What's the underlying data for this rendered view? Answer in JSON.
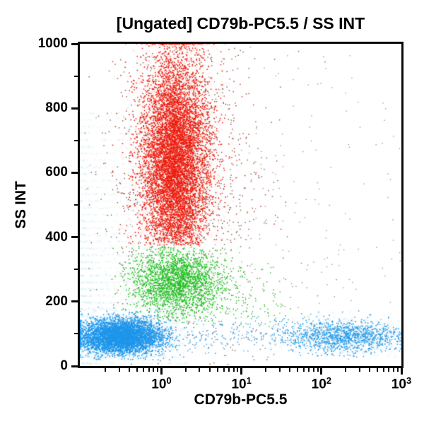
{
  "chart_data": {
    "type": "scatter",
    "title": "[Ungated] CD79b-PC5.5 / SS INT",
    "xlabel": "CD79b-PC5.5",
    "ylabel": "SS INT",
    "x_scale": "log",
    "x_range_log10": [
      -1.02,
      3.0
    ],
    "y_range": [
      0,
      1000
    ],
    "y_major_ticks": [
      0,
      200,
      400,
      600,
      800,
      1000
    ],
    "y_minor_ticks": [
      100,
      300,
      500,
      700,
      900
    ],
    "x_major_tick_exponents": [
      0,
      1,
      2,
      3
    ],
    "x_minor_decades": [
      -1,
      0,
      1,
      2
    ],
    "grid": false,
    "legend": "none",
    "population_colors": {
      "granulocytes_red": "#ee1a0d",
      "monocytes_green": "#1fbf1f",
      "lymphocytes_blue": "#1e96eb",
      "b_cells_blue": "#2a9ce8",
      "debris_gray": "#6e5443",
      "noise_bands_cyan": "#bfe7f0"
    },
    "clusters": [
      {
        "name": "noise-bands",
        "type": "bands",
        "color": "#bfe7f0",
        "alpha": 0.55,
        "size": 1.4,
        "band_y_min": 8,
        "band_y_step": 21,
        "band_count": 38,
        "n_per_band": 105,
        "x_log_min": -1.02,
        "x_log_span": 1.35
      },
      {
        "name": "debris-scatter",
        "color": "#6e5443",
        "n": 850,
        "size": 1.5,
        "alpha": 0.85,
        "x_mean": 0.28,
        "x_sd": 0.5,
        "x_clip": [
          -1.01,
          2.95
        ],
        "y_mean": 540,
        "y_sd": 300,
        "y_clip": [
          5,
          1000
        ]
      },
      {
        "name": "debris-scatter-wide",
        "color": "#8d8178",
        "n": 240,
        "size": 1.4,
        "alpha": 0.8,
        "x_mean": 1.2,
        "x_sd": 1.1,
        "x_clip": [
          -1.01,
          3.0
        ],
        "y_mean": 500,
        "y_sd": 330,
        "y_clip": [
          5,
          1000
        ]
      },
      {
        "name": "monocytes",
        "color": "#1fbf1f",
        "halo": "#d6f3d6",
        "n": 2000,
        "size": 1.6,
        "alpha": 0.95,
        "x_mean": 0.18,
        "x_sd": 0.27,
        "x_clip": [
          -0.78,
          1.45
        ],
        "y_mean": 262,
        "y_sd": 52,
        "y_clip": [
          135,
          372
        ]
      },
      {
        "name": "monocytes-tail",
        "color": "#24b824",
        "n": 170,
        "size": 1.5,
        "alpha": 0.9,
        "x_mean": 0.95,
        "x_sd": 0.55,
        "x_clip": [
          0.2,
          2.2
        ],
        "y_mean": 210,
        "y_sd": 60,
        "y_clip": [
          120,
          330
        ]
      },
      {
        "name": "granulocytes",
        "color": "#ee1a0d",
        "halo": "#f8d4d2",
        "n": 7200,
        "size": 1.6,
        "alpha": 0.95,
        "x_mean": 0.17,
        "x_sd": 0.21,
        "x_clip": [
          -0.62,
          1.12
        ],
        "pile_high_y": true,
        "y_mean": 635,
        "y_sd": 165,
        "y_clip": [
          375,
          1000
        ]
      },
      {
        "name": "granulocytes-fringe",
        "color": "#c03018",
        "n": 320,
        "size": 1.5,
        "alpha": 0.9,
        "x_mean": 0.45,
        "x_sd": 0.5,
        "x_clip": [
          -0.9,
          1.6
        ],
        "y_mean": 650,
        "y_sd": 210,
        "y_clip": [
          380,
          1000
        ]
      },
      {
        "name": "lymphocytes",
        "color": "#1e96eb",
        "halo": "#c7e8fa",
        "n": 4400,
        "size": 1.6,
        "alpha": 0.95,
        "x_mean": -0.5,
        "x_sd": 0.26,
        "x_clip": [
          -1.015,
          0.55
        ],
        "pile_low_x": true,
        "y_mean": 92,
        "y_sd": 27,
        "y_clip": [
          18,
          185
        ]
      },
      {
        "name": "lymphocytes-bridge",
        "color": "#2f90de",
        "n": 220,
        "size": 1.5,
        "alpha": 0.85,
        "x_mean": 1.0,
        "x_sd": 0.6,
        "x_clip": [
          0.3,
          2.0
        ],
        "y_mean": 95,
        "y_sd": 28,
        "y_clip": [
          20,
          170
        ]
      },
      {
        "name": "b-cells",
        "color": "#2a9ce8",
        "halo": "#cfeaf8",
        "n": 1150,
        "size": 1.6,
        "alpha": 0.92,
        "x_mean": 2.3,
        "x_sd": 0.38,
        "x_clip": [
          1.35,
          3.0
        ],
        "y_mean": 92,
        "y_sd": 25,
        "y_clip": [
          28,
          175
        ]
      }
    ]
  }
}
